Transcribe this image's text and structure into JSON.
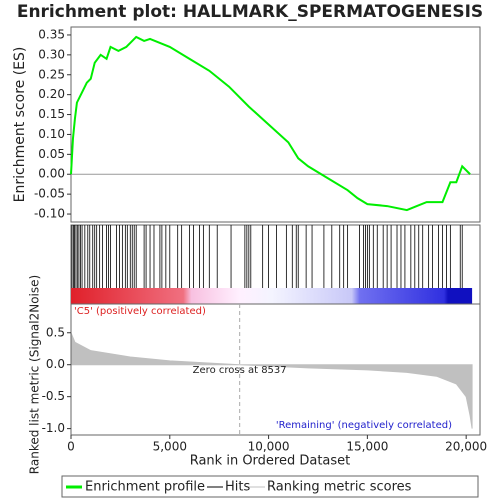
{
  "chart_data": [
    {
      "type": "line",
      "title": "Enrichment plot: HALLMARK_SPERMATOGENESIS",
      "ylabel": "Enrichment score (ES)",
      "xlim": [
        0,
        20700
      ],
      "ylim": [
        -0.12,
        0.37
      ],
      "yticks": [
        {
          "value": -0.1,
          "label": "-0.10"
        },
        -0.05,
        {
          "value": 0,
          "label": "0.00"
        },
        0.05,
        {
          "value": 0.1,
          "label": "0.10"
        },
        0.15,
        {
          "value": 0.2,
          "label": "0.20"
        },
        0.25,
        {
          "value": 0.3,
          "label": "0.30"
        },
        0.35
      ],
      "x": [
        0,
        100,
        200,
        300,
        600,
        800,
        1000,
        1200,
        1500,
        1800,
        2000,
        2400,
        2800,
        3000,
        3300,
        3700,
        4000,
        4500,
        5000,
        6000,
        7000,
        8000,
        9000,
        10000,
        11000,
        11500,
        12000,
        13000,
        14000,
        14500,
        15000,
        16000,
        17000,
        17500,
        18000,
        18800,
        19200,
        19500,
        19800,
        20200
      ],
      "series": [
        {
          "name": "Enrichment profile",
          "color": "#00ee00",
          "values": [
            0,
            0.09,
            0.14,
            0.18,
            0.21,
            0.23,
            0.24,
            0.28,
            0.3,
            0.29,
            0.32,
            0.31,
            0.32,
            0.33,
            0.345,
            0.335,
            0.34,
            0.33,
            0.32,
            0.29,
            0.26,
            0.22,
            0.17,
            0.125,
            0.08,
            0.04,
            0.02,
            -0.01,
            -0.04,
            -0.06,
            -0.075,
            -0.08,
            -0.09,
            -0.08,
            -0.07,
            -0.07,
            -0.02,
            -0.02,
            0.02,
            0
          ]
        }
      ]
    },
    {
      "type": "hits",
      "name": "Hits",
      "color": "#000000",
      "xlim": [
        0,
        20700
      ],
      "x": [
        50,
        120,
        180,
        250,
        320,
        400,
        480,
        560,
        700,
        850,
        950,
        1100,
        1200,
        1300,
        1450,
        1600,
        1800,
        1900,
        2000,
        2300,
        2450,
        2600,
        2750,
        2850,
        3000,
        3100,
        3200,
        3300,
        3700,
        3800,
        4000,
        4200,
        4500,
        4600,
        4800,
        5000,
        5400,
        5600,
        6000,
        6200,
        6500,
        6700,
        7000,
        7400,
        8100,
        8800,
        8900,
        9000,
        9100,
        9700,
        10000,
        10400,
        10900,
        11200,
        11400,
        11500,
        11900,
        12200,
        12800,
        13200,
        13600,
        13800,
        14000,
        14600,
        14800,
        14900,
        15000,
        15100,
        15300,
        15500,
        15800,
        16000,
        16200,
        16500,
        16700,
        16900,
        17200,
        17400,
        17600,
        17800,
        18100,
        18300,
        18600,
        18800,
        19000,
        19200,
        19700,
        19800
      ],
      "pos_label": "'C5' (positively correlated)",
      "neg_label": "'Remaining' (negatively correlated)"
    },
    {
      "type": "area",
      "ylabel": "Ranked list metric (Signal2Noise)",
      "xlabel": "Rank in Ordered Dataset",
      "xlim": [
        0,
        20700
      ],
      "ylim": [
        -1.1,
        0.95
      ],
      "xticks": [
        0,
        {
          "value": 5000,
          "label": "5,000"
        },
        {
          "value": 10000,
          "label": "10,000"
        },
        {
          "value": 15000,
          "label": "15,000"
        },
        {
          "value": 20000,
          "label": "20,000"
        }
      ],
      "yticks": [
        {
          "value": -1,
          "label": "-1.0"
        },
        -0.5,
        {
          "value": 0,
          "label": "0.0"
        },
        0.5
      ],
      "zero_cross": 8537,
      "annotation": "Zero cross at 8537",
      "x": [
        0,
        200,
        1000,
        3000,
        5000,
        8537,
        12000,
        15000,
        17000,
        18500,
        19500,
        20000,
        20200,
        20300
      ],
      "series": [
        {
          "name": "Ranking metric scores",
          "color": "#c0c0c0",
          "values": [
            0.5,
            0.35,
            0.22,
            0.12,
            0.06,
            0,
            -0.05,
            -0.08,
            -0.12,
            -0.18,
            -0.3,
            -0.5,
            -0.8,
            -1.0
          ]
        }
      ]
    }
  ]
}
